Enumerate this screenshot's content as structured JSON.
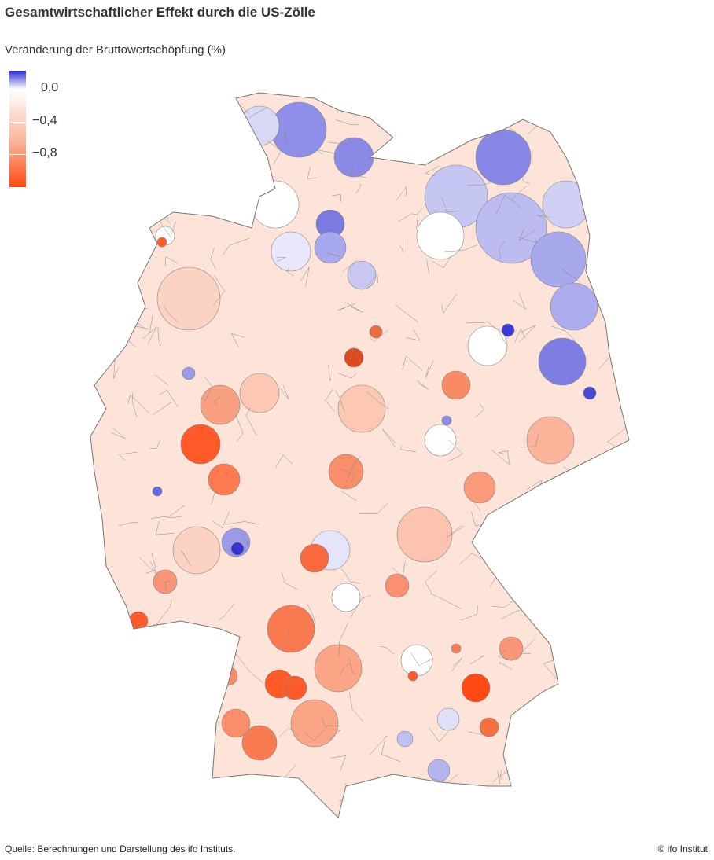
{
  "title": "Gesamtwirtschaftlicher Effekt durch die US-Zölle",
  "subtitle": "Veränderung der Bruttowertschöpfung (%)",
  "legend": {
    "ticks": [
      "0,0",
      "−0,4",
      "−0,8"
    ],
    "colors": {
      "max_positive": "#2a2ad8",
      "zero": "#ffffff",
      "mid": "#f9b69c",
      "max_negative": "#ff4a14"
    }
  },
  "source": "Quelle: Berechnungen und Darstellung des ifo Instituts.",
  "copyright": "© ifo Institut"
}
